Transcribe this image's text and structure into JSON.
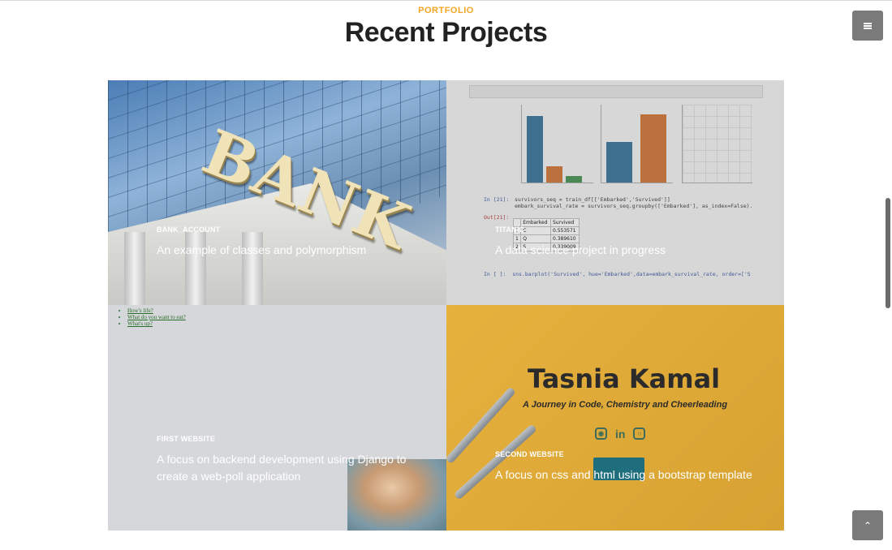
{
  "header": {
    "eyebrow": "PORTFOLIO",
    "title": "Recent Projects"
  },
  "menu_button": {
    "icon": "hamburger-menu-icon"
  },
  "back_to_top_button": {
    "icon": "chevron-up-icon",
    "glyph": "⌃"
  },
  "projects": [
    {
      "category": "BANK_ACCOUNT",
      "description": "An example of classes and polymorphism",
      "image": "bank-building-photo"
    },
    {
      "category": "TITANIC",
      "description": "A data science project in progress",
      "image": "jupyter-notebook-screenshot"
    },
    {
      "category": "FIRST WEBSITE",
      "description": "A focus on backend development using Django to create a web-poll application",
      "image": "web-poll-page-with-hamster"
    },
    {
      "category": "SECOND WEBSITE",
      "description": "A focus on css and html using a bootstrap template",
      "image": "personal-site-hero-screenshot"
    }
  ],
  "thumbnails": {
    "first_website_links": [
      "How's life?",
      "What do you want to eat?",
      "What's up?"
    ],
    "second_website": {
      "name": "Tasnia Kamal",
      "tagline": "A Journey in Code, Chemistry and Cheerleading"
    },
    "titanic": {
      "code_in": "In [21]:",
      "code_line1": "survivors_seq = train_df[['Embarked','Survived']]",
      "code_line2": "embark_survival_rate = survivors_seq.groupby(['Embarked'], as_index=False).",
      "out_label": "Out[21]:",
      "table_header": [
        "",
        "Embarked",
        "Survived"
      ],
      "table_rows": [
        [
          "0",
          "C",
          "0.553571"
        ],
        [
          "1",
          "Q",
          "0.389610"
        ],
        [
          "2",
          "S",
          "0.339009"
        ]
      ],
      "code_next": "In [ ]:  sns.barplot('Survived', hue='Embarked',data=embark_survival_rate, order=['S"
    }
  },
  "colors": {
    "accent": "#f4a623",
    "heading": "#222222",
    "floating_button": "#7a7a7a",
    "tile_yellow": "#e6b13d",
    "tile_grey": "#d5d7da"
  }
}
